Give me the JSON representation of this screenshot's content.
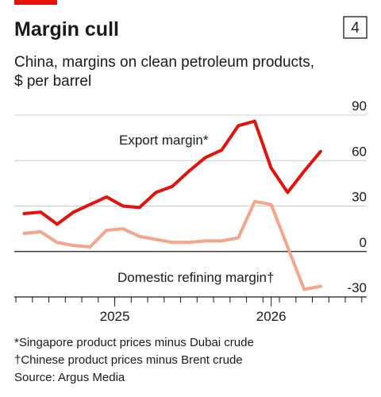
{
  "chart_data": {
    "type": "line",
    "title": "Margin cull",
    "chart_number": "4",
    "subtitle": [
      "China, margins on clean petroleum products,",
      "$ per barrel"
    ],
    "categories": [
      null,
      null,
      null,
      null,
      null,
      null,
      null,
      null,
      null,
      null,
      null,
      null,
      null,
      null,
      null,
      null,
      null,
      null,
      null
    ],
    "xlim": [
      -0.6,
      20.8
    ],
    "xticks": [
      {
        "value": 5.5,
        "label": "2025"
      },
      {
        "value": 15,
        "label": "2026"
      }
    ],
    "series": [
      {
        "name": "Export margin*",
        "color": "#e3120b",
        "values": [
          25,
          26,
          18,
          26,
          31,
          36,
          30,
          29,
          39,
          43,
          53,
          62,
          67,
          83,
          86,
          55,
          39,
          53,
          66
        ]
      },
      {
        "name": "Domestic refining margin†",
        "color": "#f4a58a",
        "values": [
          12,
          13,
          6,
          4,
          3,
          14,
          15,
          10,
          8,
          6,
          6,
          7,
          7,
          9,
          33,
          31,
          3,
          -25,
          -23
        ]
      }
    ],
    "ylim": [
      -30,
      90
    ],
    "yticks": [
      90,
      60,
      30,
      0,
      -30
    ],
    "grid": true,
    "footnotes": [
      "*Singapore product prices minus Dubai crude",
      "†Chinese product prices minus Brent crude",
      "Source: Argus Media"
    ]
  }
}
